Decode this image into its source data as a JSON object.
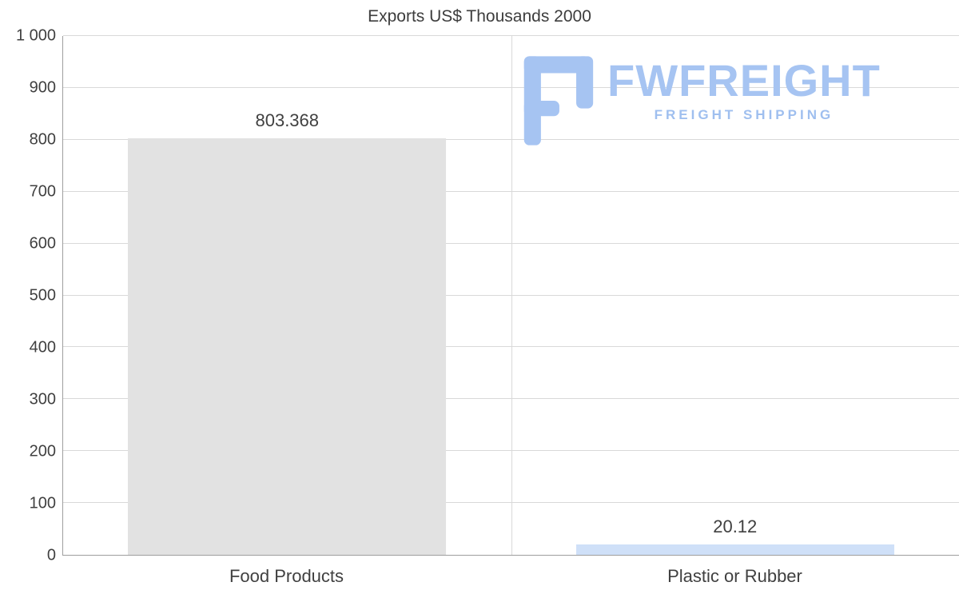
{
  "logo": {
    "name": "FWFREIGHT",
    "subtitle": "FREIGHT SHIPPING",
    "color": "#a6c4f2"
  },
  "chart_data": {
    "type": "bar",
    "title": "Exports US$ Thousands 2000",
    "categories": [
      "Food Products",
      "Plastic or Rubber"
    ],
    "values": [
      803.368,
      20.12
    ],
    "value_labels": [
      "803.368",
      "20.12"
    ],
    "bar_colors": [
      "#e2e2e2",
      "#cfe0f8"
    ],
    "xlabel": "",
    "ylabel": "",
    "ylim": [
      0,
      1000
    ],
    "yticks": [
      0,
      100,
      200,
      300,
      400,
      500,
      600,
      700,
      800,
      900,
      1000
    ],
    "ytick_labels": [
      "0",
      "100",
      "200",
      "300",
      "400",
      "500",
      "600",
      "700",
      "800",
      "900",
      "1 000"
    ],
    "grid": true,
    "grid_color": "#d9d9d9",
    "axis_color": "#9e9e9e",
    "legend": false
  }
}
